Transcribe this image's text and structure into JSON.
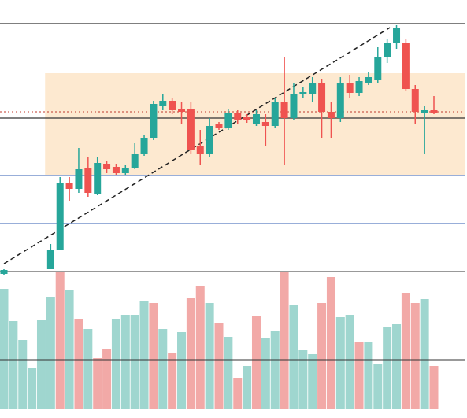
{
  "chart_data": {
    "type": "candlestick",
    "open": [
      -3,
      null,
      null,
      null,
      null,
      3,
      27,
      113,
      105,
      132,
      98,
      137,
      133,
      125,
      132,
      149,
      170,
      210,
      217,
      207,
      207,
      160,
      150,
      188,
      183,
      202,
      197,
      187,
      190,
      185,
      215,
      195,
      225,
      225,
      240,
      203,
      195,
      240,
      227,
      240,
      243,
      273,
      290,
      290,
      232,
      202,
      205
    ],
    "high": [
      3,
      null,
      null,
      null,
      null,
      35,
      120,
      120,
      157,
      145,
      145,
      140,
      137,
      135,
      163,
      173,
      217,
      225,
      220,
      215,
      215,
      180,
      195,
      190,
      207,
      205,
      200,
      205,
      200,
      220,
      273,
      240,
      235,
      247,
      245,
      215,
      247,
      250,
      247,
      253,
      285,
      295,
      313,
      295,
      237,
      210,
      223
    ],
    "low": [
      -4,
      null,
      null,
      null,
      null,
      3,
      27,
      90,
      100,
      95,
      97,
      125,
      123,
      123,
      130,
      147,
      167,
      205,
      200,
      187,
      150,
      135,
      145,
      180,
      180,
      187,
      189,
      185,
      160,
      183,
      135,
      193,
      220,
      215,
      170,
      170,
      190,
      220,
      223,
      237,
      240,
      265,
      283,
      230,
      187,
      150,
      200
    ],
    "close": [
      2,
      null,
      null,
      null,
      null,
      27,
      112,
      105,
      130,
      100,
      138,
      130,
      125,
      132,
      150,
      170,
      213,
      217,
      205,
      203,
      155,
      150,
      185,
      183,
      202,
      192,
      192,
      200,
      185,
      215,
      195,
      225,
      228,
      240,
      203,
      195,
      240,
      227,
      242,
      247,
      273,
      290,
      310,
      232,
      203,
      205,
      202
    ],
    "volume": [
      153,
      112,
      88,
      53,
      113,
      143,
      175,
      152,
      115,
      102,
      65,
      77,
      115,
      120,
      120,
      137,
      135,
      102,
      72,
      98,
      142,
      157,
      135,
      110,
      92,
      40,
      55,
      118,
      90,
      100,
      175,
      132,
      75,
      70,
      135,
      168,
      117,
      120,
      85,
      85,
      58,
      105,
      108,
      148,
      135,
      140,
      55
    ],
    "volume_colors": [
      "#9fd6cf",
      "#9fd6cf",
      "#9fd6cf",
      "#9fd6cf",
      "#9fd6cf",
      "#9fd6cf",
      "#f2a9a7",
      "#9fd6cf",
      "#f2a9a7",
      "#9fd6cf",
      "#f2a9a7",
      "#f2a9a7",
      "#9fd6cf",
      "#9fd6cf",
      "#9fd6cf",
      "#9fd6cf",
      "#f2a9a7",
      "#9fd6cf",
      "#f2a9a7",
      "#9fd6cf",
      "#f2a9a7",
      "#f2a9a7",
      "#9fd6cf",
      "#f2a9a7",
      "#9fd6cf",
      "#f2a9a7",
      "#9fd6cf",
      "#f2a9a7",
      "#9fd6cf",
      "#9fd6cf",
      "#f2a9a7",
      "#9fd6cf",
      "#9fd6cf",
      "#9fd6cf",
      "#f2a9a7",
      "#f2a9a7",
      "#9fd6cf",
      "#9fd6cf",
      "#f2a9a7",
      "#9fd6cf",
      "#9fd6cf",
      "#9fd6cf",
      "#9fd6cf",
      "#f2a9a7",
      "#f2a9a7",
      "#9fd6cf",
      "#f2a9a7"
    ],
    "up_color": "#26a69a",
    "down_color": "#ef5350",
    "ylim": [
      0,
      340
    ],
    "volume_ylim": [
      0,
      175
    ],
    "horizontal_lines": [
      {
        "value": 315,
        "color": "#333333"
      },
      {
        "value": 195,
        "color": "#333333"
      },
      {
        "value": 122,
        "color": "#5b7ec2"
      },
      {
        "value": 61,
        "color": "#5b7ec2"
      }
    ],
    "volume_lines": [
      {
        "value": 63,
        "color": "#333333"
      }
    ],
    "dotted_line": {
      "value": 203,
      "color": "#c0392b"
    },
    "zone": {
      "from": 123,
      "to": 252,
      "from_x": 4.4,
      "color": "#fde9d0"
    },
    "trendline": {
      "from": [
        0,
        10
      ],
      "to": [
        41.3,
        310
      ]
    }
  }
}
